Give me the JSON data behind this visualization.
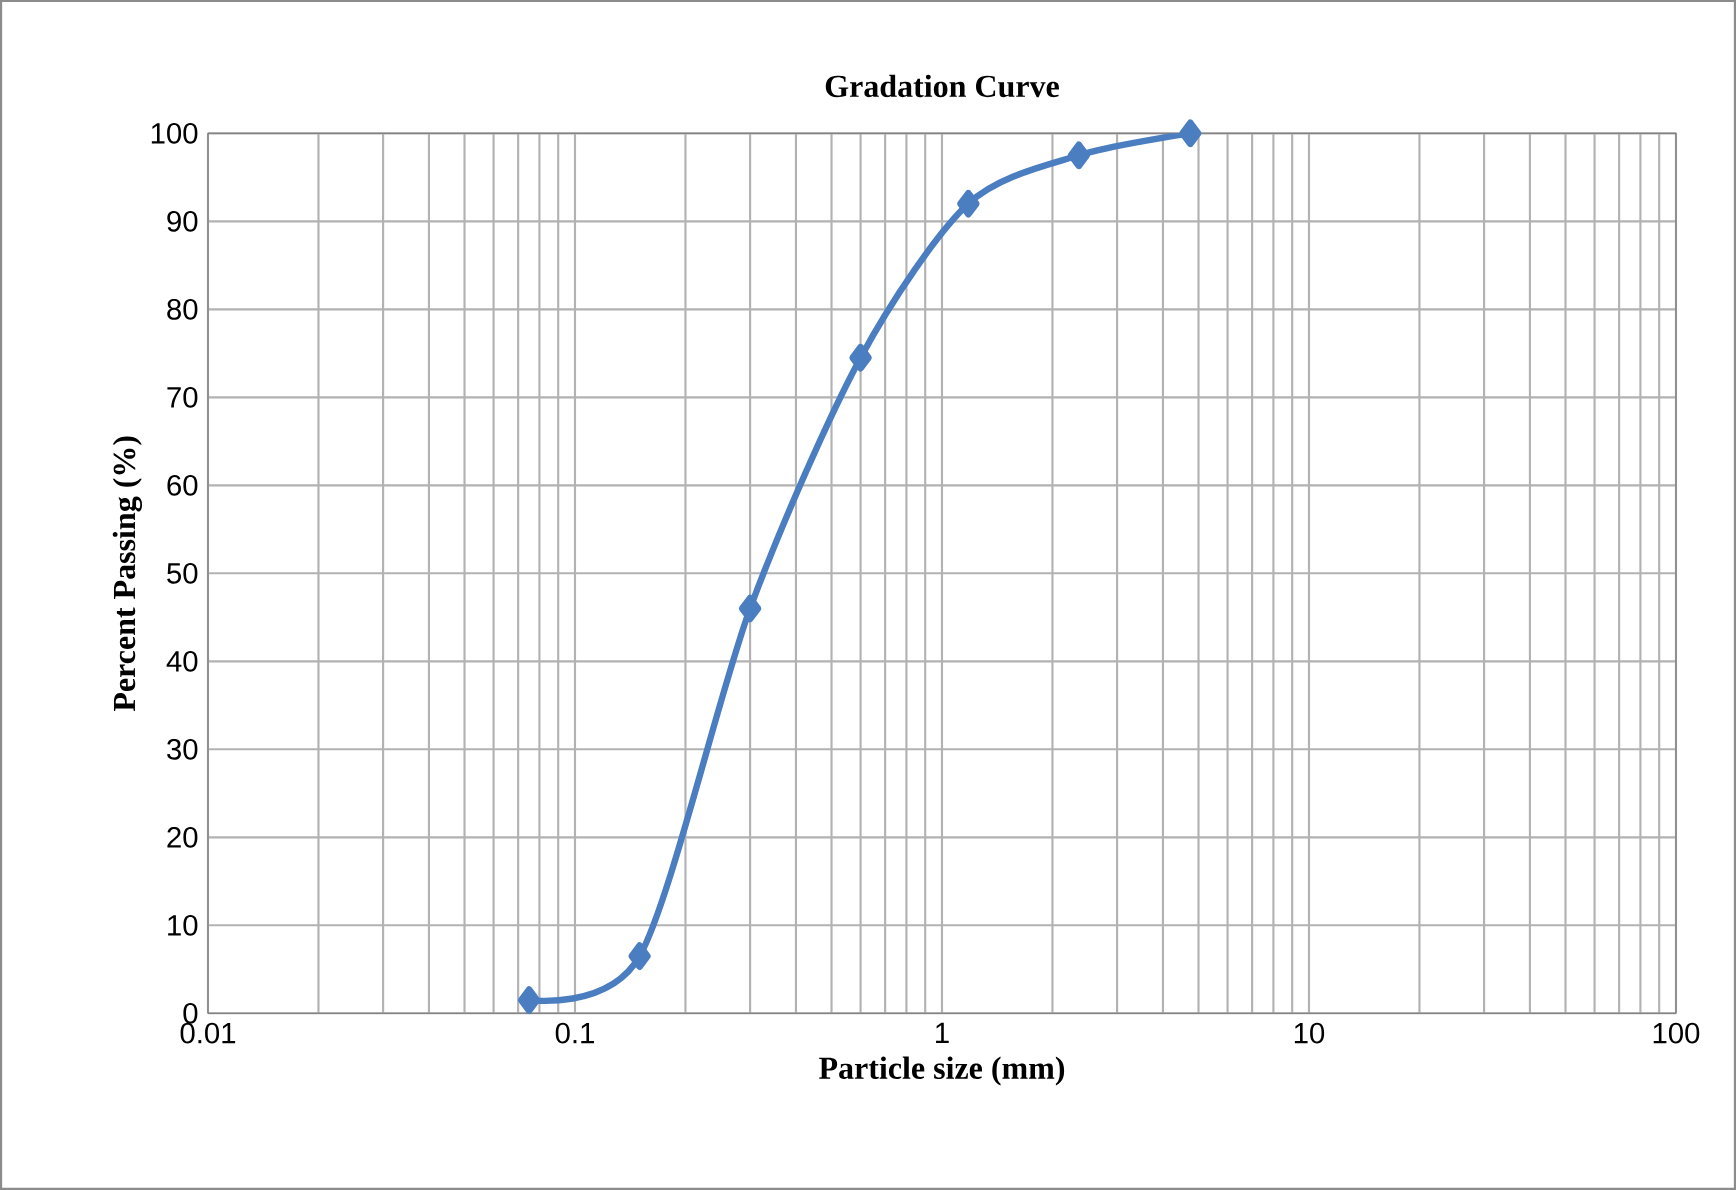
{
  "chart_data": {
    "type": "line",
    "title": "Gradation Curve",
    "xlabel": "Particle size (mm)",
    "ylabel": "Percent Passing (%)",
    "x": [
      0.075,
      0.15,
      0.3,
      0.6,
      1.18,
      2.36,
      4.75
    ],
    "series": [
      {
        "color": "#4a7ec0",
        "values": [
          1.5,
          6.5,
          46,
          74.5,
          92,
          97.5,
          100
        ]
      }
    ],
    "log": "x",
    "xlim": [
      0.01,
      100
    ],
    "xticks": [
      0.01,
      0.1,
      1,
      10,
      100
    ],
    "ylim": [
      0,
      100
    ],
    "yticks": [
      0,
      10,
      20,
      30,
      40,
      50,
      60,
      70,
      80,
      90,
      100
    ],
    "grid": true,
    "marker": "diamond",
    "line_style": "solid"
  }
}
